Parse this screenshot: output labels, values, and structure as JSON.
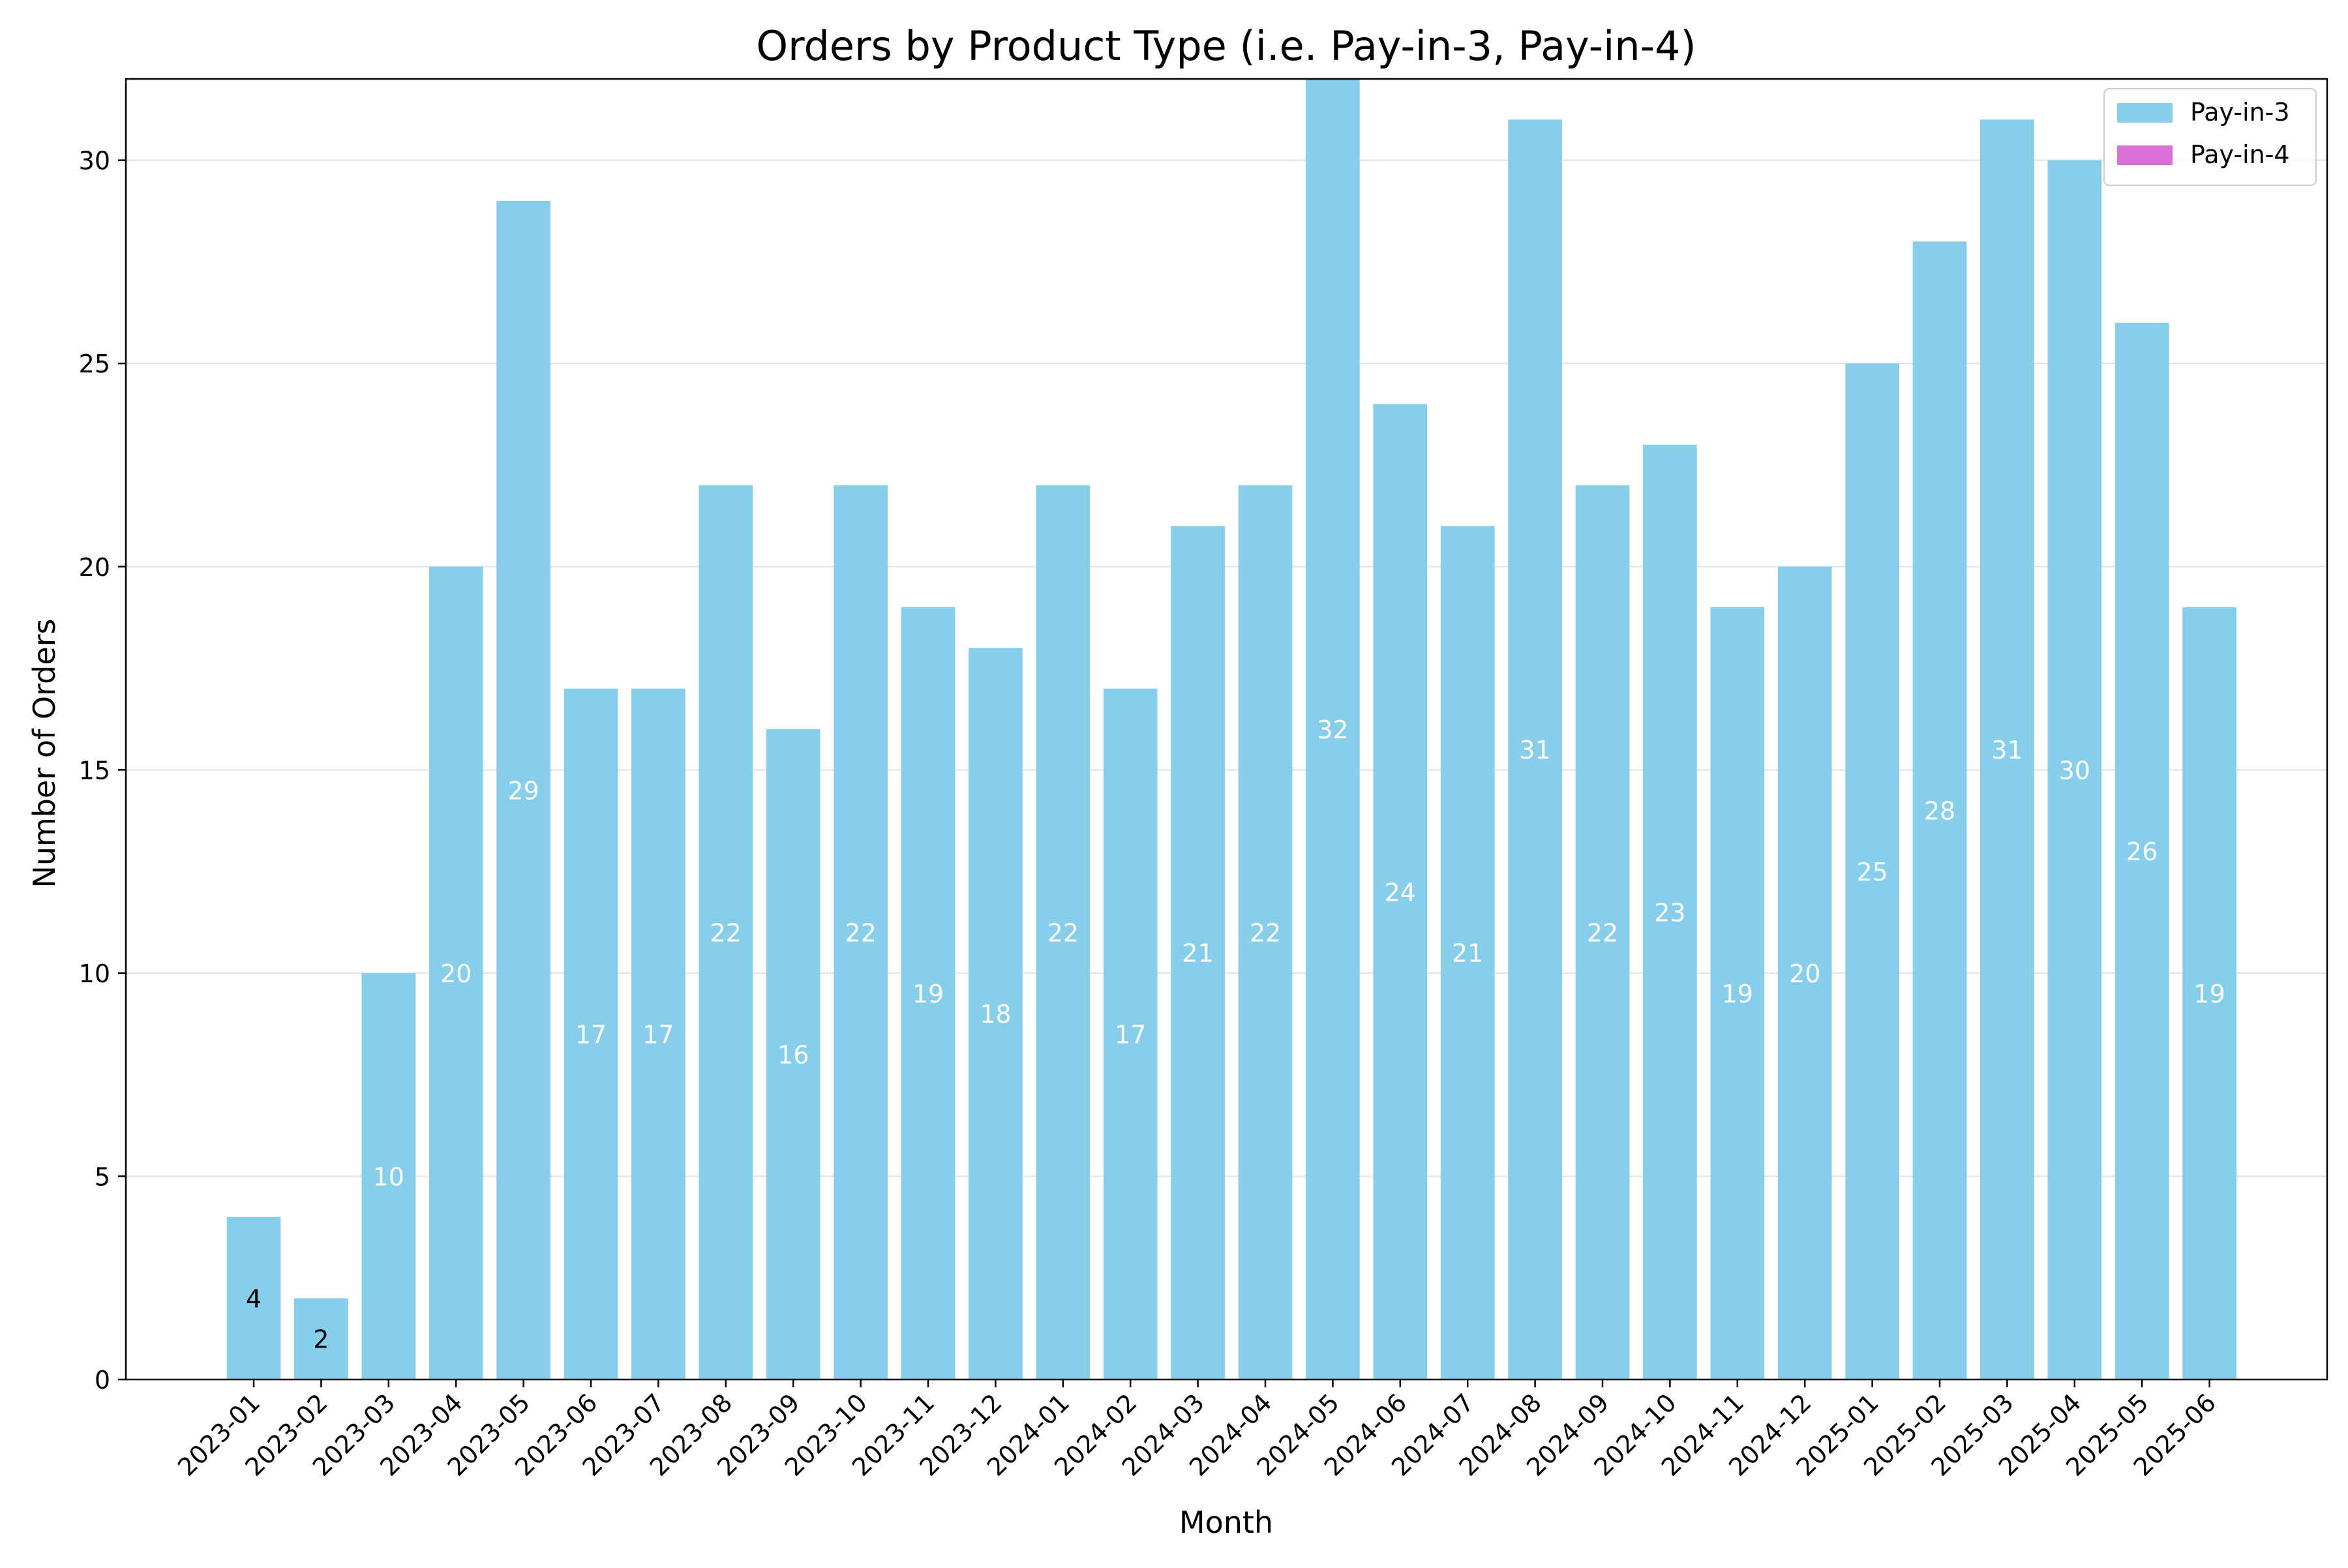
{
  "chart_data": {
    "type": "bar",
    "stacked": true,
    "title": "Orders by Product Type (i.e. Pay-in-3, Pay-in-4)",
    "xlabel": "Month",
    "ylabel": "Number of Orders",
    "ylim": [
      0,
      32
    ],
    "yticks": [
      0,
      5,
      10,
      15,
      20,
      25,
      30
    ],
    "grid": "horizontal",
    "legend_position": "top-right",
    "categories": [
      "2023-01",
      "2023-02",
      "2023-03",
      "2023-04",
      "2023-05",
      "2023-06",
      "2023-07",
      "2023-08",
      "2023-09",
      "2023-10",
      "2023-11",
      "2023-12",
      "2024-01",
      "2024-02",
      "2024-03",
      "2024-04",
      "2024-05",
      "2024-06",
      "2024-07",
      "2024-08",
      "2024-09",
      "2024-10",
      "2024-11",
      "2024-12",
      "2025-01",
      "2025-02",
      "2025-03",
      "2025-04",
      "2025-05",
      "2025-06"
    ],
    "series": [
      {
        "name": "Pay-in-3",
        "color": "#87CEEB",
        "values": [
          4,
          2,
          10,
          20,
          29,
          17,
          17,
          22,
          16,
          22,
          19,
          18,
          22,
          17,
          21,
          22,
          32,
          24,
          21,
          31,
          22,
          23,
          19,
          20,
          25,
          28,
          31,
          30,
          26,
          19
        ]
      },
      {
        "name": "Pay-in-4",
        "color": "#DA70D6",
        "values": [
          0,
          0,
          0,
          0,
          0,
          0,
          0,
          0,
          0,
          0,
          0,
          0,
          0,
          0,
          0,
          0,
          0,
          0,
          0,
          0,
          0,
          0,
          0,
          0,
          0,
          0,
          0,
          0,
          0,
          0
        ]
      }
    ],
    "data_labels": [
      4,
      2,
      10,
      20,
      29,
      17,
      17,
      22,
      16,
      22,
      19,
      18,
      22,
      17,
      21,
      22,
      32,
      24,
      21,
      31,
      22,
      23,
      19,
      20,
      25,
      28,
      31,
      30,
      26,
      19
    ]
  }
}
